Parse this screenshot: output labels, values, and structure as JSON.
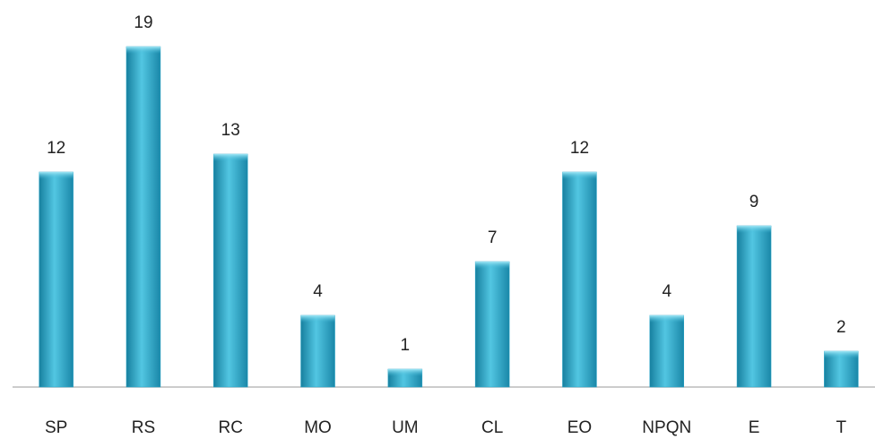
{
  "chart_data": {
    "type": "bar",
    "categories": [
      "SP",
      "RS",
      "RC",
      "MO",
      "UM",
      "CL",
      "EO",
      "NPQN",
      "E",
      "T"
    ],
    "values": [
      12,
      19,
      13,
      4,
      1,
      7,
      12,
      4,
      9,
      2
    ],
    "color": "#2aa6c8",
    "ylim": [
      0,
      19
    ]
  }
}
